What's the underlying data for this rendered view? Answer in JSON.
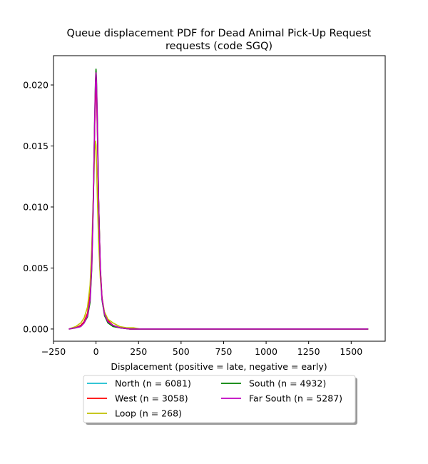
{
  "chart_data": {
    "type": "line",
    "title": "Queue displacement PDF for Dead Animal Pick-Up Request\nrequests (code SGQ)",
    "xlabel": "Displacement (positive = late, negative = early)",
    "ylabel": "",
    "xlim": [
      -250,
      1700
    ],
    "ylim": [
      -0.001,
      0.0224
    ],
    "xticks": [
      -250,
      0,
      250,
      500,
      750,
      1000,
      1250,
      1500
    ],
    "xtick_labels": [
      "−250",
      "0",
      "250",
      "500",
      "750",
      "1000",
      "1250",
      "1500"
    ],
    "yticks": [
      0.0,
      0.005,
      0.01,
      0.015,
      0.02
    ],
    "ytick_labels": [
      "0.000",
      "0.005",
      "0.010",
      "0.015",
      "0.020"
    ],
    "grid": false,
    "legend_position": "below",
    "legend_columns": 2,
    "series": [
      {
        "name": "North (n = 6081)",
        "color": "#17becf",
        "x": [
          -160,
          -120,
          -90,
          -70,
          -50,
          -35,
          -25,
          -15,
          -8,
          -3,
          0,
          3,
          8,
          15,
          25,
          35,
          50,
          70,
          100,
          140,
          200,
          300,
          500,
          800,
          1100,
          1400,
          1600
        ],
        "y": [
          0.0,
          0.0001,
          0.0003,
          0.0006,
          0.0012,
          0.0026,
          0.0055,
          0.011,
          0.0168,
          0.0196,
          0.0203,
          0.0196,
          0.0165,
          0.0105,
          0.0048,
          0.0024,
          0.0012,
          0.0006,
          0.0003,
          0.0001,
          0.0,
          0.0,
          0.0,
          0.0,
          0.0,
          0.0,
          0.0
        ]
      },
      {
        "name": "West (n = 3058)",
        "color": "#ff0000",
        "x": [
          -160,
          -120,
          -90,
          -70,
          -50,
          -35,
          -25,
          -15,
          -8,
          -3,
          0,
          3,
          8,
          15,
          25,
          35,
          50,
          70,
          100,
          140,
          200,
          300,
          500,
          800,
          1100,
          1400,
          1600
        ],
        "y": [
          0.0,
          0.0001,
          0.0003,
          0.0006,
          0.0013,
          0.0028,
          0.0058,
          0.0112,
          0.0166,
          0.0192,
          0.0199,
          0.0192,
          0.0163,
          0.0106,
          0.0051,
          0.0026,
          0.0013,
          0.0007,
          0.0003,
          0.0001,
          0.0,
          0.0,
          0.0,
          0.0,
          0.0,
          0.0,
          0.0
        ]
      },
      {
        "name": "Loop (n = 268)",
        "color": "#bfbf00",
        "x": [
          -160,
          -120,
          -90,
          -70,
          -50,
          -35,
          -25,
          -15,
          -8,
          -3,
          0,
          3,
          8,
          15,
          25,
          35,
          50,
          70,
          100,
          140,
          180,
          220,
          260,
          300,
          500,
          800,
          1100,
          1400,
          1600
        ],
        "y": [
          0.0,
          0.0002,
          0.0005,
          0.0009,
          0.0018,
          0.0036,
          0.0068,
          0.0112,
          0.0146,
          0.0154,
          0.0151,
          0.0136,
          0.0108,
          0.0072,
          0.0042,
          0.0025,
          0.0014,
          0.0008,
          0.0005,
          0.0002,
          0.0001,
          0.0001,
          0.0,
          0.0,
          0.0,
          0.0,
          0.0,
          0.0,
          0.0
        ]
      },
      {
        "name": "South (n = 4932)",
        "color": "#008000",
        "x": [
          -160,
          -120,
          -90,
          -70,
          -50,
          -35,
          -25,
          -15,
          -8,
          -3,
          0,
          3,
          8,
          15,
          25,
          35,
          50,
          70,
          100,
          140,
          200,
          300,
          500,
          800,
          1100,
          1400,
          1600
        ],
        "y": [
          0.0,
          0.0001,
          0.0002,
          0.0005,
          0.001,
          0.0022,
          0.005,
          0.0108,
          0.0172,
          0.0205,
          0.0213,
          0.0204,
          0.0172,
          0.0108,
          0.0049,
          0.0024,
          0.0011,
          0.0005,
          0.0002,
          0.0001,
          0.0,
          0.0,
          0.0,
          0.0,
          0.0,
          0.0,
          0.0
        ]
      },
      {
        "name": "Far South (n = 5287)",
        "color": "#bf00bf",
        "x": [
          -160,
          -120,
          -90,
          -70,
          -50,
          -35,
          -25,
          -15,
          -8,
          -3,
          0,
          3,
          8,
          15,
          25,
          35,
          50,
          70,
          100,
          140,
          200,
          300,
          500,
          800,
          1100,
          1400,
          1600
        ],
        "y": [
          0.0,
          0.0001,
          0.0002,
          0.0005,
          0.0011,
          0.0024,
          0.0052,
          0.011,
          0.017,
          0.0202,
          0.021,
          0.0201,
          0.0169,
          0.0107,
          0.005,
          0.0025,
          0.0012,
          0.0006,
          0.0003,
          0.0001,
          0.0,
          0.0,
          0.0,
          0.0,
          0.0,
          0.0,
          0.0
        ]
      }
    ]
  }
}
